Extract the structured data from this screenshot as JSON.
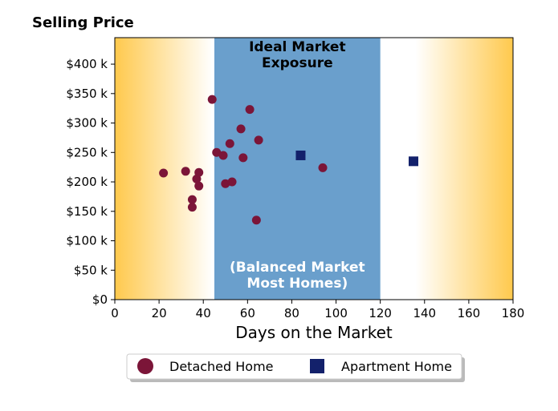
{
  "chart_data": {
    "type": "scatter",
    "title": "Selling Price",
    "xlabel": "Days on the Market",
    "ylabel": "",
    "xlim": [
      0,
      180
    ],
    "ylim": [
      0,
      445000
    ],
    "x_ticks": [
      0,
      20,
      40,
      60,
      80,
      100,
      120,
      140,
      160,
      180
    ],
    "x_tick_labels": [
      "0",
      "20",
      "40",
      "60",
      "80",
      "100",
      "120",
      "140",
      "160",
      "180"
    ],
    "y_ticks": [
      0,
      50000,
      100000,
      150000,
      200000,
      250000,
      300000,
      350000,
      400000
    ],
    "y_tick_labels": [
      "$0",
      "$50 k",
      "$100 k",
      "$150 k",
      "$200 k",
      "$250 k",
      "$300 k",
      "$350 k",
      "$400 k"
    ],
    "grid": false,
    "legend_position": "bottom-center",
    "bands": [
      {
        "x_start": 45,
        "x_end": 120,
        "color": "#6a9fcc",
        "top_label": [
          "Ideal Market",
          "Exposure"
        ],
        "bottom_label": [
          "(Balanced Market",
          "Most Homes)"
        ]
      }
    ],
    "background_gradient": {
      "edge_color": "#ffc94d",
      "center_color": "#ffffff"
    },
    "series": [
      {
        "name": "Detached Home",
        "marker": "circle",
        "color": "#7b1538",
        "points": [
          {
            "x": 22,
            "y": 215000
          },
          {
            "x": 32,
            "y": 218000
          },
          {
            "x": 35,
            "y": 170000
          },
          {
            "x": 35,
            "y": 157000
          },
          {
            "x": 37,
            "y": 205000
          },
          {
            "x": 38,
            "y": 216000
          },
          {
            "x": 38,
            "y": 193000
          },
          {
            "x": 44,
            "y": 340000
          },
          {
            "x": 46,
            "y": 250000
          },
          {
            "x": 49,
            "y": 245000
          },
          {
            "x": 50,
            "y": 197000
          },
          {
            "x": 52,
            "y": 265000
          },
          {
            "x": 53,
            "y": 200000
          },
          {
            "x": 57,
            "y": 290000
          },
          {
            "x": 58,
            "y": 241000
          },
          {
            "x": 61,
            "y": 323000
          },
          {
            "x": 64,
            "y": 135000
          },
          {
            "x": 65,
            "y": 271000
          },
          {
            "x": 94,
            "y": 224000
          }
        ]
      },
      {
        "name": "Apartment Home",
        "marker": "square",
        "color": "#13216b",
        "points": [
          {
            "x": 84,
            "y": 245000
          },
          {
            "x": 135,
            "y": 235000
          }
        ]
      }
    ]
  }
}
